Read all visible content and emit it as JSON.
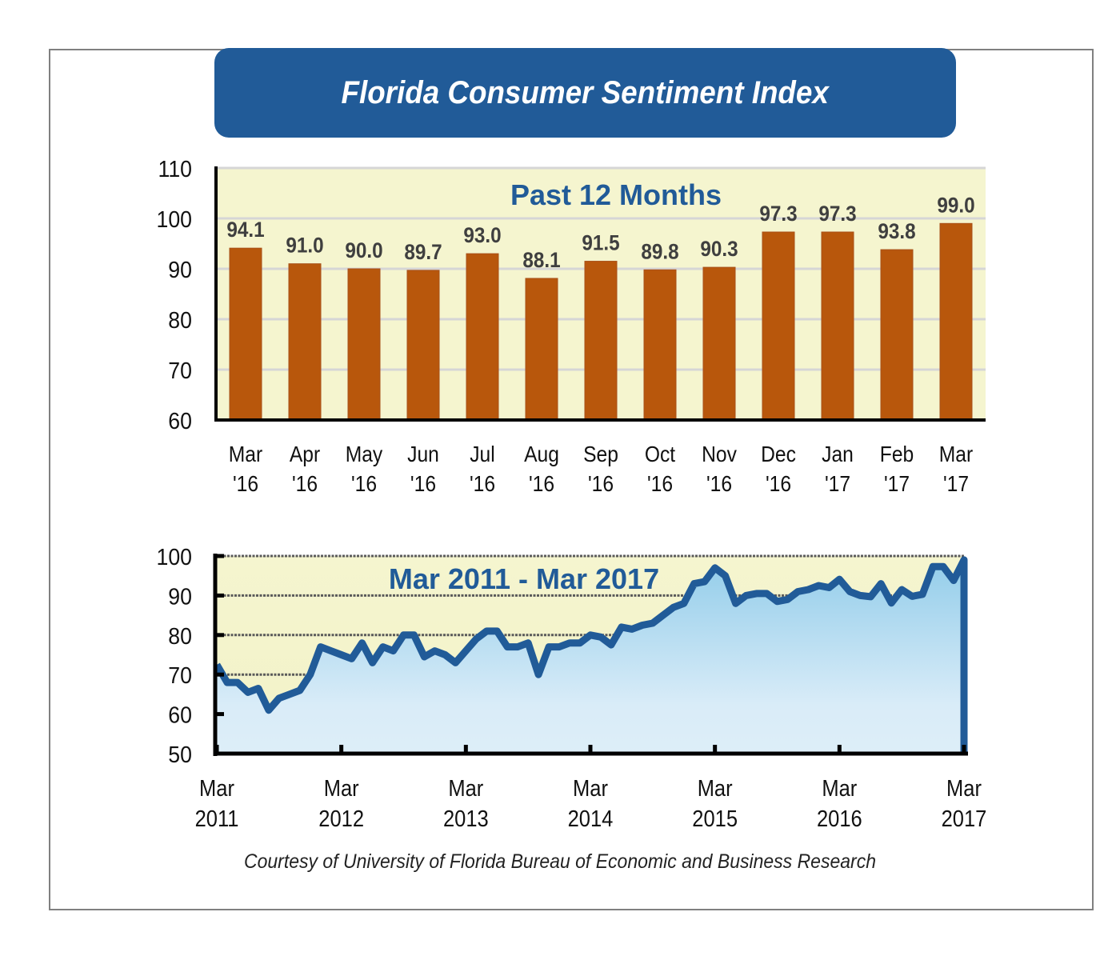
{
  "title": "Florida Consumer Sentiment Index",
  "footer": "Courtesy of University of Florida Bureau of Economic and Business Research",
  "colors": {
    "title_bg": "#215b98",
    "title_text": "#ffffff",
    "plot_bg": "#f5f5cf",
    "bar_fill": "#b8570c",
    "bar_label": "#3f3f3f",
    "line_stroke": "#215b98",
    "area_top": "#93cdea",
    "area_bottom": "#ddeef8",
    "subtitle": "#215b98"
  },
  "chart_data": [
    {
      "type": "bar",
      "title": "Past 12 Months",
      "xlabel": "",
      "ylabel": "",
      "ylim": [
        60,
        110
      ],
      "yticks": [
        60,
        70,
        80,
        90,
        100,
        110
      ],
      "grid": true,
      "categories": [
        [
          "Mar",
          "'16"
        ],
        [
          "Apr",
          "'16"
        ],
        [
          "May",
          "'16"
        ],
        [
          "Jun",
          "'16"
        ],
        [
          "Jul",
          "'16"
        ],
        [
          "Aug",
          "'16"
        ],
        [
          "Sep",
          "'16"
        ],
        [
          "Oct",
          "'16"
        ],
        [
          "Nov",
          "'16"
        ],
        [
          "Dec",
          "'16"
        ],
        [
          "Jan",
          "'17"
        ],
        [
          "Feb",
          "'17"
        ],
        [
          "Mar",
          "'17"
        ]
      ],
      "values": [
        94.1,
        91.0,
        90.0,
        89.7,
        93.0,
        88.1,
        91.5,
        89.8,
        90.3,
        97.3,
        97.3,
        93.8,
        99.0
      ],
      "data_labels": [
        "94.1",
        "91.0",
        "90.0",
        "89.7",
        "93.0",
        "88.1",
        "91.5",
        "89.8",
        "90.3",
        "97.3",
        "97.3",
        "93.8",
        "99.0"
      ]
    },
    {
      "type": "area",
      "title": "Mar 2011 - Mar 2017",
      "xlabel": "",
      "ylabel": "",
      "ylim": [
        50,
        100
      ],
      "yticks": [
        50,
        60,
        70,
        80,
        90,
        100
      ],
      "grid": true,
      "x_start": "Mar 2011",
      "x_end": "Mar 2017",
      "xticks": [
        [
          "Mar",
          "2011"
        ],
        [
          "Mar",
          "2012"
        ],
        [
          "Mar",
          "2013"
        ],
        [
          "Mar",
          "2014"
        ],
        [
          "Mar",
          "2015"
        ],
        [
          "Mar",
          "2016"
        ],
        [
          "Mar",
          "2017"
        ]
      ],
      "values": [
        72.5,
        68.0,
        68.0,
        65.5,
        66.5,
        61.0,
        64.0,
        65.0,
        66.0,
        70.0,
        77.0,
        76.0,
        75.0,
        74.0,
        78.0,
        73.0,
        77.0,
        76.0,
        80.0,
        80.0,
        74.5,
        76.0,
        75.0,
        73.0,
        76.0,
        79.0,
        81.0,
        81.0,
        77.0,
        77.0,
        78.0,
        70.0,
        77.0,
        77.0,
        78.0,
        78.0,
        80.0,
        79.5,
        77.5,
        82.0,
        81.5,
        82.5,
        83.0,
        85.0,
        87.0,
        88.0,
        93.0,
        93.5,
        97.0,
        95.0,
        88.0,
        90.0,
        90.5,
        90.5,
        88.5,
        89.0,
        91.0,
        91.5,
        92.5,
        92.0,
        94.1,
        91.0,
        90.0,
        89.7,
        93.0,
        88.1,
        91.5,
        89.8,
        90.3,
        97.3,
        97.3,
        93.8,
        99.0
      ]
    }
  ]
}
